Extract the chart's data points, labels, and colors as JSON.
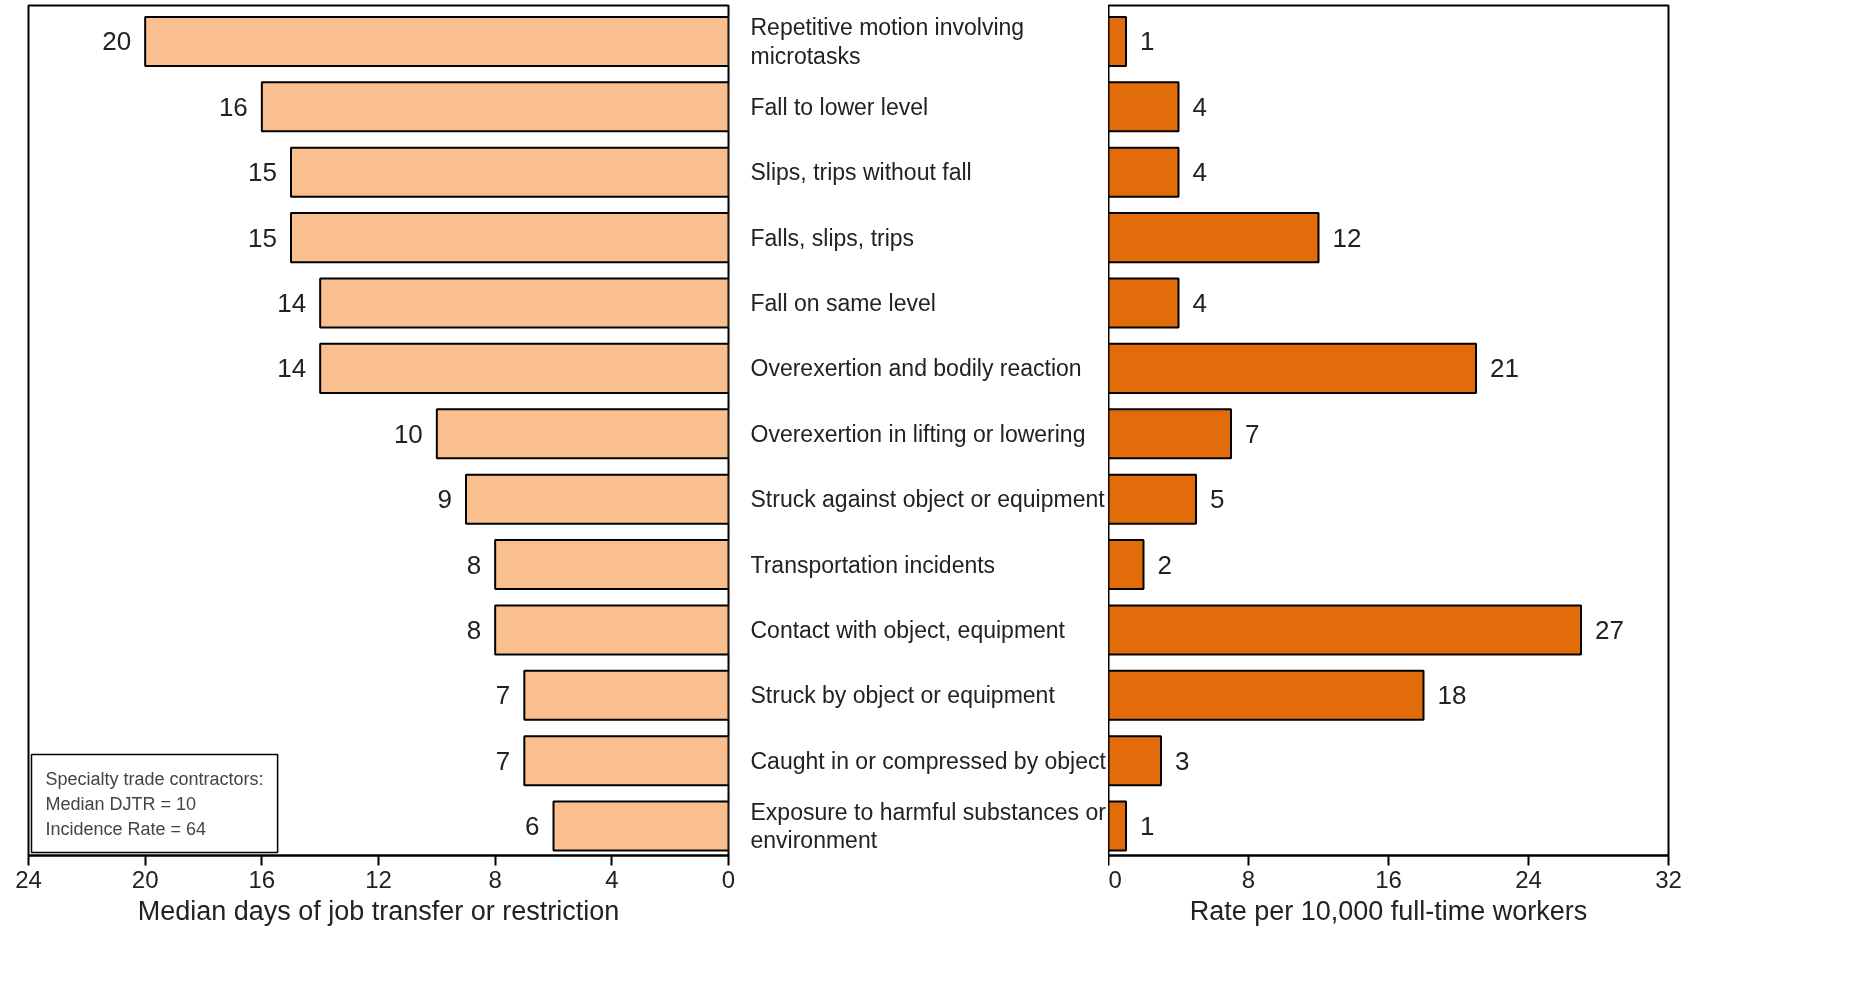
{
  "chart_data": [
    {
      "type": "bar",
      "orientation": "horizontal",
      "xlabel": "Median days of job transfer or restriction",
      "categories": [
        "Repetitive motion involving microtasks",
        "Fall to lower level",
        "Slips, trips without fall",
        "Falls, slips, trips",
        "Fall on same level",
        "Overexertion and bodily reaction",
        "Overexertion in lifting or lowering",
        "Struck against object or equipment",
        "Transportation incidents",
        "Contact with object, equipment",
        "Struck by object or equipment",
        "Caught in or compressed by object",
        "Exposure to harmful substances or environment"
      ],
      "values": [
        20,
        16,
        15,
        15,
        14,
        14,
        10,
        9,
        8,
        8,
        7,
        7,
        6
      ],
      "color": "#f9bf8f",
      "data_labels": true,
      "xlim": [
        24,
        0
      ],
      "xticks": [
        24,
        20,
        16,
        12,
        8,
        4,
        0
      ],
      "annotations": [
        "Specialty trade contractors:",
        "Median DJTR = 10",
        "Incidence Rate = 64"
      ]
    },
    {
      "type": "bar",
      "orientation": "horizontal",
      "xlabel": "Rate per 10,000 full-time workers",
      "categories": [
        "Repetitive motion involving microtasks",
        "Fall to lower level",
        "Slips, trips without fall",
        "Falls, slips, trips",
        "Fall on same level",
        "Overexertion and bodily reaction",
        "Overexertion in lifting or lowering",
        "Struck against object or equipment",
        "Transportation incidents",
        "Contact with object, equipment",
        "Struck by object or equipment",
        "Caught in or compressed by object",
        "Exposure to harmful substances or environment"
      ],
      "values": [
        1,
        4,
        4,
        12,
        4,
        21,
        7,
        5,
        2,
        27,
        18,
        3,
        1
      ],
      "color": "#e36c0a",
      "data_labels": true,
      "xlim": [
        0,
        32
      ],
      "xticks": [
        0,
        8,
        16,
        24,
        32
      ],
      "tick_labels": "x"
    }
  ]
}
